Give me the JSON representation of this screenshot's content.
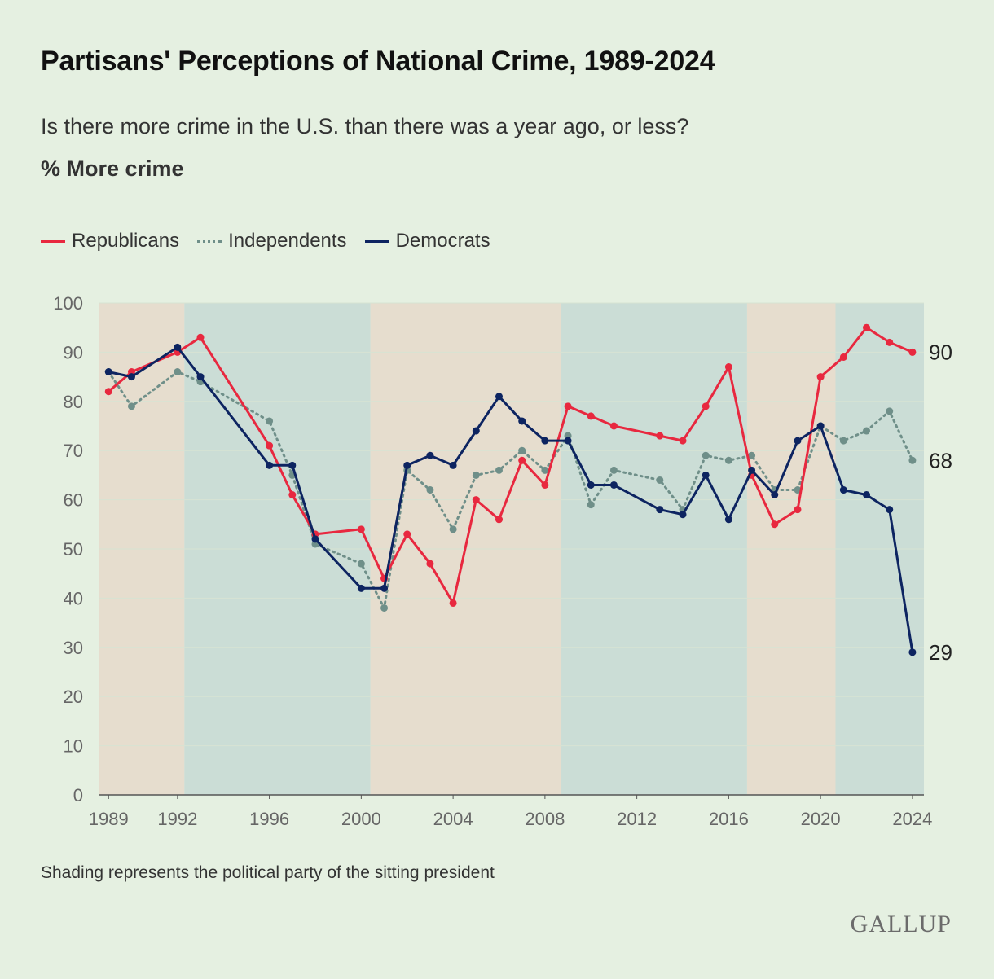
{
  "title": "Partisans' Perceptions of National Crime, 1989-2024",
  "subtitle": "Is there more crime in the U.S. than there was a year ago, or less?",
  "measure": "% More crime",
  "note": "Shading represents the political party of the sitting president",
  "brand": "GALLUP",
  "legend": [
    {
      "label": "Republicans"
    },
    {
      "label": "Independents"
    },
    {
      "label": "Democrats"
    }
  ],
  "colors": {
    "republicans": "#e8283f",
    "independents": "#6f8f89",
    "democrats": "#0d2461",
    "rep_shade": "#e6ddce",
    "dem_shade": "#cbddd6"
  },
  "chart_data": {
    "type": "line",
    "title": "Partisans' Perceptions of National Crime, 1989-2024",
    "ylabel": "% More crime",
    "xlabel": "",
    "xlim": [
      1988.6,
      2024.5
    ],
    "ylim": [
      0,
      100
    ],
    "x_ticks": [
      1989,
      1992,
      1996,
      2000,
      2004,
      2008,
      2012,
      2016,
      2020,
      2024
    ],
    "y_ticks": [
      0,
      10,
      20,
      30,
      40,
      50,
      60,
      70,
      80,
      90,
      100
    ],
    "shading": [
      {
        "start": 1988.6,
        "end": 1992.3,
        "party": "republican"
      },
      {
        "start": 1992.3,
        "end": 2000.4,
        "party": "democrat"
      },
      {
        "start": 2000.4,
        "end": 2008.7,
        "party": "republican"
      },
      {
        "start": 2008.7,
        "end": 2016.8,
        "party": "democrat"
      },
      {
        "start": 2016.8,
        "end": 2020.65,
        "party": "republican"
      },
      {
        "start": 2020.65,
        "end": 2024.5,
        "party": "democrat"
      }
    ],
    "series": [
      {
        "name": "Independents",
        "key": "independents",
        "style": "dotted",
        "x": [
          1989,
          1990,
          1992,
          1993,
          1996,
          1997,
          1998,
          2000,
          2001,
          2002,
          2003,
          2004,
          2005,
          2006,
          2007,
          2008,
          2009,
          2010,
          2011,
          2013,
          2014,
          2015,
          2016,
          2017,
          2018,
          2019,
          2020,
          2021,
          2022,
          2023,
          2024
        ],
        "values": [
          86,
          79,
          86,
          84,
          76,
          65,
          51,
          47,
          38,
          66,
          62,
          54,
          65,
          66,
          70,
          66,
          73,
          59,
          66,
          64,
          58,
          69,
          68,
          69,
          62,
          62,
          75,
          72,
          74,
          78,
          68
        ]
      },
      {
        "name": "Republicans",
        "key": "republicans",
        "style": "solid",
        "x": [
          1989,
          1990,
          1992,
          1993,
          1996,
          1997,
          1998,
          2000,
          2001,
          2002,
          2003,
          2004,
          2005,
          2006,
          2007,
          2008,
          2009,
          2010,
          2011,
          2013,
          2014,
          2015,
          2016,
          2017,
          2018,
          2019,
          2020,
          2021,
          2022,
          2023,
          2024
        ],
        "values": [
          82,
          86,
          90,
          93,
          71,
          61,
          53,
          54,
          44,
          53,
          47,
          39,
          60,
          56,
          68,
          63,
          79,
          77,
          75,
          73,
          72,
          79,
          87,
          65,
          55,
          58,
          85,
          89,
          95,
          92,
          90
        ]
      },
      {
        "name": "Democrats",
        "key": "democrats",
        "style": "solid",
        "x": [
          1989,
          1990,
          1992,
          1993,
          1996,
          1997,
          1998,
          2000,
          2001,
          2002,
          2003,
          2004,
          2005,
          2006,
          2007,
          2008,
          2009,
          2010,
          2011,
          2013,
          2014,
          2015,
          2016,
          2017,
          2018,
          2019,
          2020,
          2021,
          2022,
          2023,
          2024
        ],
        "values": [
          86,
          85,
          91,
          85,
          67,
          67,
          52,
          42,
          42,
          67,
          69,
          67,
          74,
          81,
          76,
          72,
          72,
          63,
          63,
          58,
          57,
          65,
          56,
          66,
          61,
          72,
          75,
          62,
          61,
          58,
          29
        ]
      }
    ],
    "end_labels": [
      {
        "series": "republicans",
        "text": "90",
        "value": 90
      },
      {
        "series": "independents",
        "text": "68",
        "value": 68
      },
      {
        "series": "democrats",
        "text": "29",
        "value": 29
      }
    ]
  }
}
